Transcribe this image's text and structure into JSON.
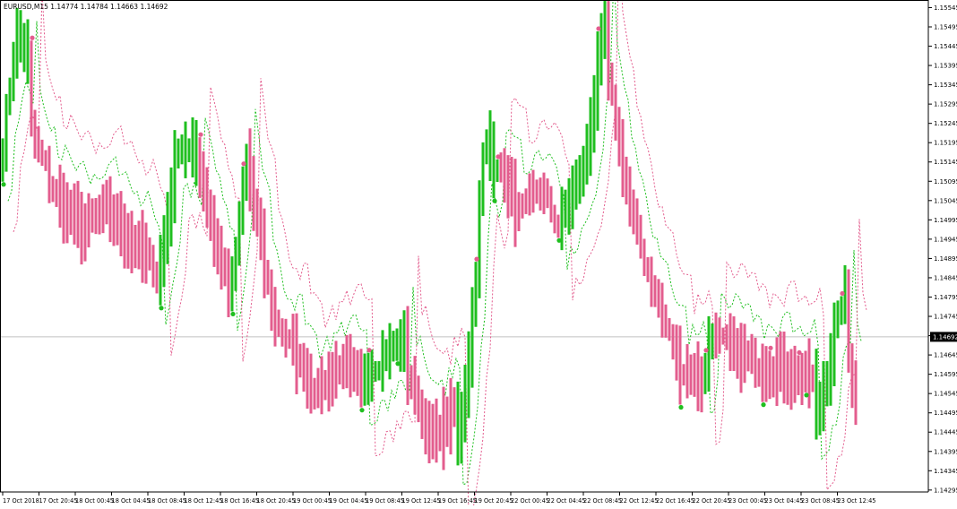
{
  "window": {
    "title": "EURUSD,M15  1.14774 1.14784 1.14663 1.14692"
  },
  "colors": {
    "background": "#ffffff",
    "bull": "#1fbf1f",
    "bear": "#e35d8e",
    "trail_green": "#1fbf1f",
    "trail_pink": "#e35d8e",
    "axis": "#000000",
    "price_line": "#c0c0c0",
    "current_price_bg": "#000000",
    "current_price_text": "#ffffff"
  },
  "chart_data": {
    "type": "bar",
    "symbol": "EURUSD",
    "timeframe": "M15",
    "ohlc_header": [
      "1.14774",
      "1.14784",
      "1.14663",
      "1.14692"
    ],
    "ylim": [
      1.1429,
      1.1556
    ],
    "current_price": 1.14692,
    "current_price_label": "1.14692",
    "y_ticks": [
      1.15545,
      1.15495,
      1.15445,
      1.15395,
      1.15345,
      1.15295,
      1.15245,
      1.15195,
      1.15145,
      1.15095,
      1.15045,
      1.14995,
      1.14945,
      1.14895,
      1.14845,
      1.14795,
      1.14745,
      1.14695,
      1.14645,
      1.14595,
      1.14545,
      1.14495,
      1.14445,
      1.14395,
      1.14345,
      1.14295
    ],
    "y_tick_labels": [
      "1.15545",
      "1.15495",
      "1.15445",
      "1.15395",
      "1.15345",
      "1.15295",
      "1.15245",
      "1.15195",
      "1.15145",
      "1.15095",
      "1.15045",
      "1.14995",
      "1.14945",
      "1.14895",
      "1.14845",
      "1.14795",
      "1.14745",
      "1.14695",
      "1.14645",
      "1.14595",
      "1.14545",
      "1.14495",
      "1.14445",
      "1.14395",
      "1.14345",
      "1.14295"
    ],
    "x_tick_labels": [
      "17 Oct 2018",
      "17 Oct 20:45",
      "18 Oct 00:45",
      "18 Oct 04:45",
      "18 Oct 08:45",
      "18 Oct 12:45",
      "18 Oct 16:45",
      "18 Oct 20:45",
      "19 Oct 00:45",
      "19 Oct 04:45",
      "19 Oct 08:45",
      "19 Oct 12:45",
      "19 Oct 16:45",
      "19 Oct 20:45",
      "22 Oct 00:45",
      "22 Oct 04:45",
      "22 Oct 08:45",
      "22 Oct 12:45",
      "22 Oct 16:45",
      "22 Oct 20:45",
      "23 Oct 00:45",
      "23 Oct 04:45",
      "23 Oct 08:45",
      "23 Oct 12:45"
    ],
    "trend_segments": [
      {
        "trend": "up",
        "from": 0,
        "to": 7,
        "anchors": [
          1.1518,
          1.1548,
          1.1542
        ]
      },
      {
        "trend": "down",
        "from": 8,
        "to": 43,
        "anchors": [
          1.1522,
          1.1505,
          1.1497,
          1.1502,
          1.1494,
          1.1486
        ]
      },
      {
        "trend": "up",
        "from": 44,
        "to": 54,
        "anchors": [
          1.1488,
          1.152,
          1.1515
        ]
      },
      {
        "trend": "down",
        "from": 55,
        "to": 63,
        "anchors": [
          1.1513,
          1.1495,
          1.1482
        ]
      },
      {
        "trend": "up",
        "from": 64,
        "to": 68,
        "anchors": [
          1.1483,
          1.1515
        ]
      },
      {
        "trend": "down",
        "from": 69,
        "to": 100,
        "anchors": [
          1.1509,
          1.1475,
          1.1465,
          1.1455,
          1.1462,
          1.1456
        ]
      },
      {
        "trend": "up",
        "from": 101,
        "to": 112,
        "anchors": [
          1.146,
          1.1465,
          1.1468
        ]
      },
      {
        "trend": "down",
        "from": 113,
        "to": 126,
        "anchors": [
          1.146,
          1.1442,
          1.145
        ]
      },
      {
        "trend": "up",
        "from": 127,
        "to": 138,
        "anchors": [
          1.1442,
          1.147,
          1.152,
          1.1514
        ]
      },
      {
        "trend": "down",
        "from": 139,
        "to": 155,
        "anchors": [
          1.1512,
          1.15,
          1.1508,
          1.1498
        ]
      },
      {
        "trend": "up",
        "from": 156,
        "to": 168,
        "anchors": [
          1.15,
          1.1513,
          1.155
        ]
      },
      {
        "trend": "down",
        "from": 169,
        "to": 195,
        "anchors": [
          1.1535,
          1.15,
          1.148,
          1.1462,
          1.1458
        ]
      },
      {
        "trend": "up",
        "from": 196,
        "to": 198,
        "anchors": [
          1.1462,
          1.1472
        ]
      },
      {
        "trend": "down",
        "from": 199,
        "to": 226,
        "anchors": [
          1.1468,
          1.1463,
          1.1461,
          1.1458
        ]
      },
      {
        "trend": "up",
        "from": 227,
        "to": 235,
        "anchors": [
          1.1448,
          1.1465,
          1.1482
        ]
      },
      {
        "trend": "down",
        "from": 236,
        "to": 238,
        "anchors": [
          1.1462,
          1.1455
        ]
      }
    ],
    "signal_dots": [
      {
        "bar": 0,
        "type": "buy"
      },
      {
        "bar": 8,
        "type": "sell"
      },
      {
        "bar": 44,
        "type": "buy"
      },
      {
        "bar": 55,
        "type": "sell"
      },
      {
        "bar": 64,
        "type": "buy"
      },
      {
        "bar": 67,
        "type": "sell"
      },
      {
        "bar": 100,
        "type": "buy"
      },
      {
        "bar": 102,
        "type": "sell"
      },
      {
        "bar": 110,
        "type": "buy"
      },
      {
        "bar": 132,
        "type": "sell"
      },
      {
        "bar": 137,
        "type": "buy"
      },
      {
        "bar": 138,
        "type": "sell"
      },
      {
        "bar": 155,
        "type": "buy"
      },
      {
        "bar": 166,
        "type": "sell"
      },
      {
        "bar": 189,
        "type": "buy"
      },
      {
        "bar": 196,
        "type": "sell"
      },
      {
        "bar": 212,
        "type": "buy"
      },
      {
        "bar": 214,
        "type": "sell"
      },
      {
        "bar": 222,
        "type": "sell"
      },
      {
        "bar": 224,
        "type": "buy"
      },
      {
        "bar": 234,
        "type": "sell"
      }
    ]
  }
}
